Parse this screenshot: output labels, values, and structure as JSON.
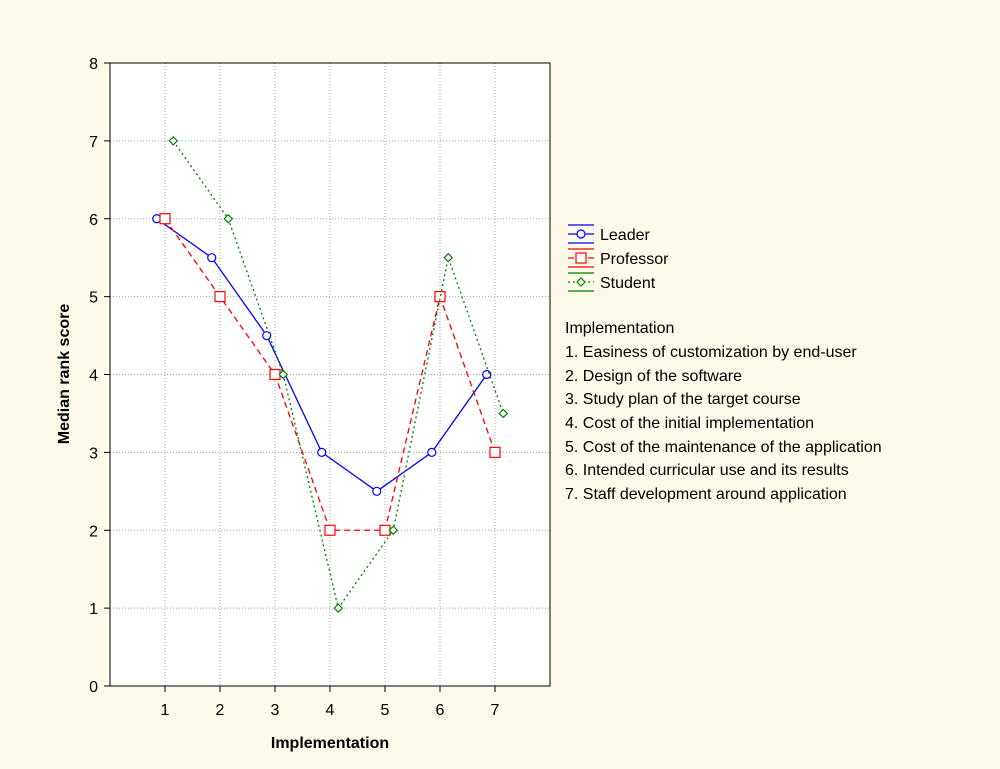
{
  "chart_data": {
    "type": "line",
    "title": "",
    "xlabel": "Implementation",
    "ylabel": "Median rank score",
    "categories": [
      "1",
      "2",
      "3",
      "4",
      "5",
      "6",
      "7"
    ],
    "xlim": [
      0,
      8
    ],
    "ylim": [
      0,
      8
    ],
    "yticks": [
      0,
      1,
      2,
      3,
      4,
      5,
      6,
      7,
      8
    ],
    "grid": true,
    "legend_position": "right",
    "series": [
      {
        "name": "Leader",
        "color": "#0000ff",
        "line_style": "solid",
        "marker": "circle",
        "x_offset": -0.15,
        "values": [
          6,
          5.5,
          4.5,
          3,
          2.5,
          3,
          4
        ]
      },
      {
        "name": "Professor",
        "color": "#ff0000",
        "line_style": "dashed",
        "marker": "square",
        "x_offset": 0.0,
        "values": [
          6,
          5,
          4,
          2,
          2,
          5,
          3
        ]
      },
      {
        "name": "Student",
        "color": "#008000",
        "line_style": "dotted",
        "marker": "diamond",
        "x_offset": 0.15,
        "values": [
          7,
          6,
          4,
          1,
          2,
          5.5,
          3.5
        ]
      }
    ],
    "annotation": {
      "title": "Implementation",
      "items": [
        "1. Easiness of customization by end-user",
        "2. Design of the software",
        "3. Study plan of the target course",
        "4. Cost of the initial implementation",
        "5. Cost of the maintenance of the application",
        "6. Intended curricular use and its results",
        "7. Staff development around application"
      ]
    }
  }
}
